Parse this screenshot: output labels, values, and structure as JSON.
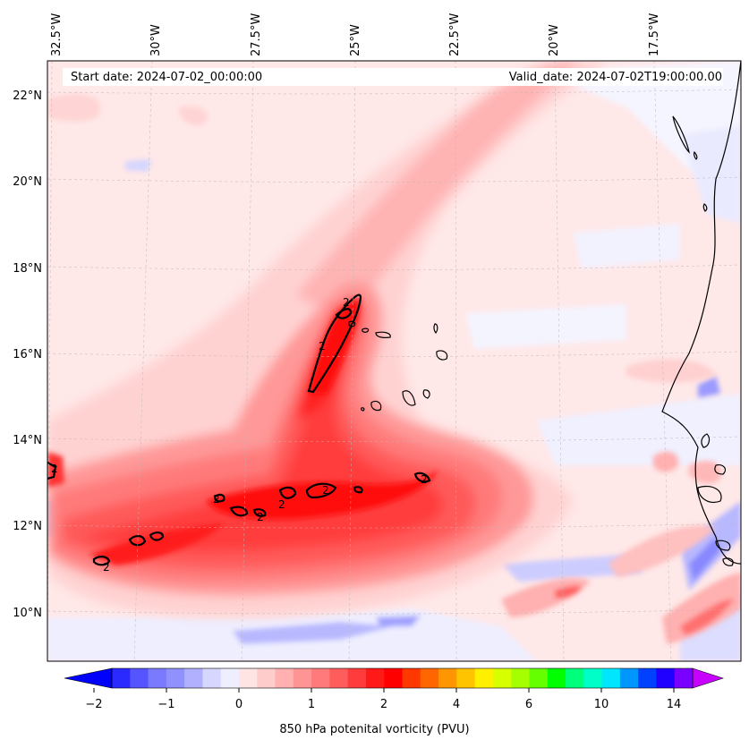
{
  "header": {
    "start_date": "Start date: 2024-07-02_00:00:00",
    "valid_date": "Valid_date: 2024-07-02T19:00:00.00"
  },
  "map": {
    "longitude_labels": [
      "32.5°W",
      "30°W",
      "27.5°W",
      "25°W",
      "22.5°W",
      "20°W",
      "17.5°W"
    ],
    "latitude_labels": [
      "22°N",
      "20°N",
      "18°N",
      "16°N",
      "14°N",
      "12°N",
      "10°N"
    ],
    "contour_value_label": "2"
  },
  "colorbar": {
    "title": "850 hPa potenital vorticity (PVU)",
    "tick_labels": [
      "−2",
      "−1",
      "0",
      "1",
      "2",
      "4",
      "6",
      "10",
      "14"
    ],
    "colors": [
      "#0000ff",
      "#2a2aff",
      "#5555ff",
      "#7a7aff",
      "#9090ff",
      "#b0b0ff",
      "#d6d6ff",
      "#eeeeff",
      "#ffe4e4",
      "#ffcccc",
      "#ffb0b0",
      "#ff9494",
      "#ff7a7a",
      "#ff5c5c",
      "#ff3c3c",
      "#ff1a1a",
      "#ff0000",
      "#ff3800",
      "#ff6600",
      "#ff9500",
      "#ffc400",
      "#fff000",
      "#d6ff00",
      "#a6ff00",
      "#66ff00",
      "#00ff00",
      "#00ff7a",
      "#00ffc8",
      "#00e6ff",
      "#0096ff",
      "#0040ff",
      "#2000ff",
      "#7a00ff",
      "#c800ff"
    ]
  }
}
